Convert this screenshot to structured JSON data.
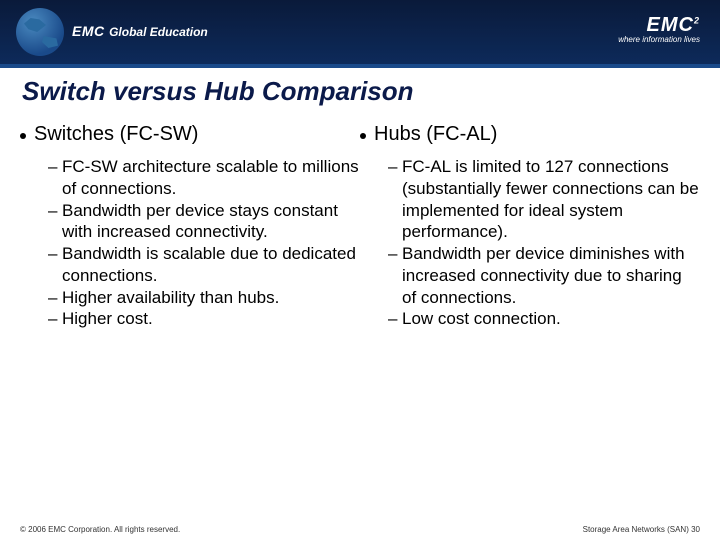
{
  "header": {
    "brand_emc": "EMC",
    "brand_text": "Global Education",
    "logo_text": "EMC",
    "logo_sup": "2",
    "logo_tag": "where information lives"
  },
  "title": "Switch versus Hub Comparison",
  "left": {
    "heading": "Switches (FC-SW)",
    "items": [
      "FC-SW architecture scalable to millions of connections.",
      "Bandwidth per device stays constant with increased connectivity.",
      "Bandwidth is scalable due to dedicated connections.",
      "Higher availability than hubs.",
      "Higher cost."
    ]
  },
  "right": {
    "heading": "Hubs (FC-AL)",
    "items": [
      "FC-AL is limited to 127 connections (substantially fewer connections can be implemented for ideal system performance).",
      "Bandwidth per device diminishes with increased connectivity due to sharing of connections.",
      "Low cost connection."
    ]
  },
  "footer": {
    "copyright": "© 2006 EMC Corporation. All rights reserved.",
    "page": "Storage Area Networks (SAN) 30"
  },
  "colors": {
    "header_bg_top": "#0a1a3a",
    "header_bg_bottom": "#0d2a5a",
    "title_color": "#0b1a4a",
    "text_color": "#000000",
    "background": "#ffffff"
  }
}
